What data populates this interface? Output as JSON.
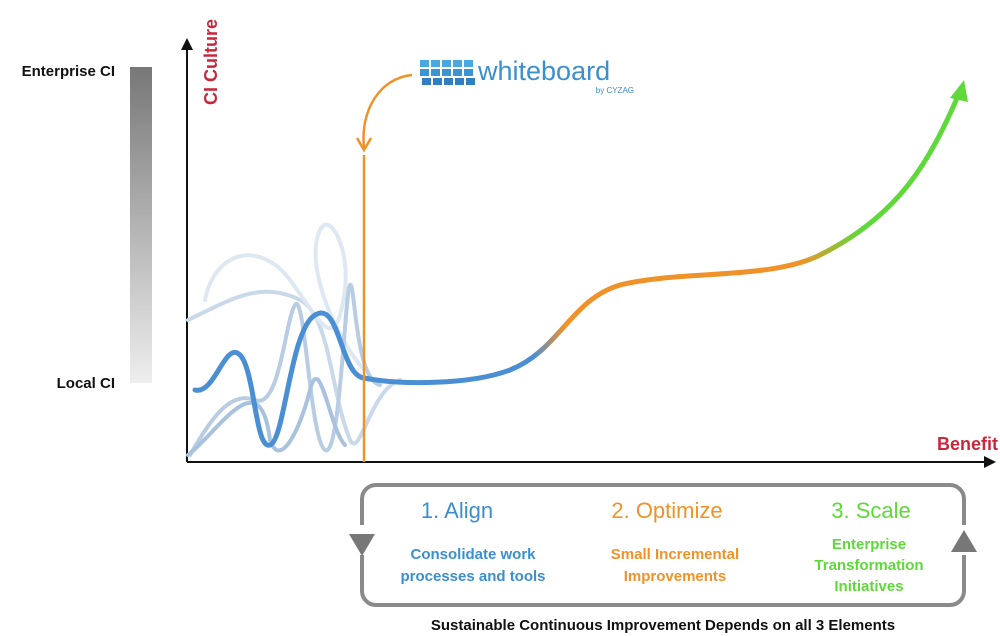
{
  "axes": {
    "y_label": "CI Culture",
    "x_label": "Benefit"
  },
  "scale": {
    "top": "Enterprise CI",
    "bottom": "Local CI"
  },
  "logo": {
    "name": "whiteboard",
    "byline": "by CYZAG"
  },
  "steps": [
    {
      "title": "1. Align",
      "description": [
        "Consolidate work",
        "processes and tools"
      ]
    },
    {
      "title": "2. Optimize",
      "description": [
        "Small Incremental",
        "Improvements"
      ]
    },
    {
      "title": "3. Scale",
      "description": [
        "Enterprise",
        "Transformation",
        "Initiatives"
      ]
    }
  ],
  "footer": "Sustainable Continuous Improvement Depends on all 3 Elements"
}
